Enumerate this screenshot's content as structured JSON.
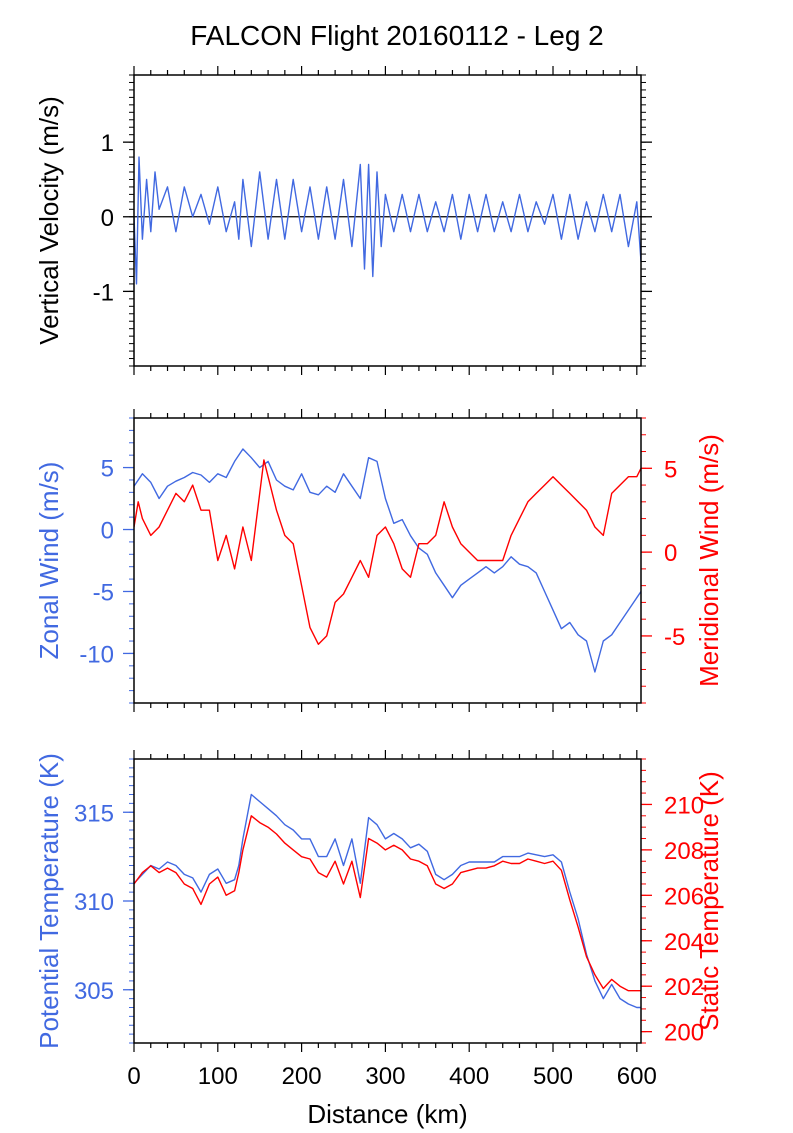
{
  "title": "FALCON Flight 20160112 - Leg 2",
  "colors": {
    "blue": "#4169E1",
    "red": "#FF0000",
    "frame": "#000000"
  },
  "chart_data": [
    {
      "type": "line",
      "ylabel": "Vertical Velocity (m/s)",
      "xlim": [
        0,
        605
      ],
      "ylim": [
        -2,
        1.9
      ],
      "yticks": [
        {
          "v": 1,
          "label": "1"
        },
        {
          "v": 0,
          "label": "0"
        },
        {
          "v": -1,
          "label": "-1"
        }
      ],
      "reference_line_y": 0,
      "series": [
        {
          "color": "#4169E1",
          "x": [
            0,
            3,
            6,
            10,
            15,
            20,
            25,
            30,
            40,
            50,
            60,
            70,
            80,
            90,
            100,
            110,
            120,
            125,
            130,
            140,
            150,
            160,
            170,
            180,
            190,
            200,
            210,
            220,
            230,
            240,
            250,
            260,
            270,
            275,
            280,
            285,
            290,
            295,
            300,
            310,
            320,
            330,
            340,
            350,
            360,
            370,
            380,
            390,
            400,
            410,
            420,
            430,
            440,
            450,
            460,
            470,
            480,
            490,
            500,
            510,
            520,
            530,
            540,
            550,
            560,
            570,
            580,
            590,
            600,
            605
          ],
          "y": [
            0.0,
            -0.9,
            0.8,
            -0.3,
            0.5,
            -0.2,
            0.6,
            0.1,
            0.4,
            -0.2,
            0.4,
            0.0,
            0.3,
            -0.1,
            0.4,
            -0.2,
            0.2,
            -0.3,
            0.5,
            -0.4,
            0.6,
            -0.3,
            0.5,
            -0.3,
            0.5,
            -0.2,
            0.4,
            -0.3,
            0.4,
            -0.3,
            0.5,
            -0.4,
            0.7,
            -0.7,
            0.7,
            -0.8,
            0.6,
            -0.4,
            0.3,
            -0.2,
            0.3,
            -0.2,
            0.3,
            -0.2,
            0.2,
            -0.2,
            0.3,
            -0.3,
            0.3,
            -0.2,
            0.3,
            -0.2,
            0.2,
            -0.2,
            0.3,
            -0.2,
            0.2,
            -0.1,
            0.3,
            -0.3,
            0.3,
            -0.3,
            0.2,
            -0.2,
            0.3,
            -0.2,
            0.3,
            -0.4,
            0.2,
            -0.6
          ]
        }
      ]
    },
    {
      "type": "line",
      "ylabel": "Zonal Wind (m/s)",
      "ylabel_right": "Meridional Wind (m/s)",
      "xlim": [
        0,
        605
      ],
      "ylim": [
        -14,
        9
      ],
      "ylim_right": [
        -9,
        8
      ],
      "yticks": [
        {
          "v": 5,
          "label": "5"
        },
        {
          "v": 0,
          "label": "0"
        },
        {
          "v": -5,
          "label": "-5"
        },
        {
          "v": -10,
          "label": "-10"
        }
      ],
      "yticks_right": [
        {
          "v": 5,
          "label": "5"
        },
        {
          "v": 0,
          "label": "0"
        },
        {
          "v": -5,
          "label": "-5"
        }
      ],
      "series": [
        {
          "name": "Zonal Wind",
          "axis": "left",
          "color": "#4169E1",
          "x": [
            0,
            10,
            20,
            30,
            40,
            50,
            60,
            70,
            80,
            90,
            100,
            110,
            120,
            130,
            140,
            150,
            160,
            170,
            180,
            190,
            200,
            210,
            220,
            230,
            240,
            250,
            260,
            270,
            280,
            290,
            300,
            310,
            320,
            330,
            340,
            350,
            360,
            370,
            380,
            390,
            400,
            410,
            420,
            430,
            440,
            450,
            460,
            470,
            480,
            490,
            500,
            510,
            520,
            530,
            540,
            550,
            560,
            570,
            580,
            590,
            600,
            605
          ],
          "y": [
            3.5,
            4.5,
            3.8,
            2.5,
            3.5,
            3.9,
            4.2,
            4.6,
            4.4,
            3.8,
            4.5,
            4.2,
            5.5,
            6.5,
            5.8,
            5.0,
            5.5,
            4.0,
            3.5,
            3.2,
            4.5,
            3.0,
            2.8,
            3.5,
            3.0,
            4.5,
            3.5,
            2.5,
            5.8,
            5.5,
            2.5,
            0.5,
            0.8,
            -0.5,
            -1.5,
            -2.0,
            -3.5,
            -4.5,
            -5.5,
            -4.5,
            -4.0,
            -3.5,
            -3.0,
            -3.5,
            -3.0,
            -2.2,
            -2.8,
            -3.0,
            -3.5,
            -5.0,
            -6.5,
            -8.0,
            -7.5,
            -8.5,
            -9.0,
            -11.5,
            -9.0,
            -8.5,
            -7.5,
            -6.5,
            -5.5,
            -5.0
          ]
        },
        {
          "name": "Meridional Wind",
          "axis": "right",
          "color": "#FF0000",
          "x": [
            0,
            5,
            10,
            20,
            30,
            40,
            50,
            60,
            70,
            80,
            90,
            100,
            110,
            120,
            130,
            140,
            150,
            155,
            160,
            170,
            180,
            190,
            200,
            210,
            220,
            230,
            240,
            250,
            260,
            270,
            280,
            290,
            300,
            310,
            320,
            330,
            340,
            350,
            360,
            370,
            380,
            390,
            400,
            410,
            420,
            430,
            440,
            450,
            460,
            470,
            480,
            490,
            500,
            510,
            520,
            530,
            540,
            550,
            560,
            570,
            580,
            590,
            600,
            605
          ],
          "y": [
            1.5,
            3.0,
            2.0,
            1.0,
            1.5,
            2.5,
            3.5,
            3.0,
            4.0,
            2.5,
            2.5,
            -0.5,
            1.0,
            -1.0,
            1.5,
            -0.5,
            3.5,
            5.5,
            4.5,
            2.5,
            1.0,
            0.5,
            -2.0,
            -4.5,
            -5.5,
            -5.0,
            -3.0,
            -2.5,
            -1.5,
            -0.5,
            -1.5,
            1.0,
            1.5,
            0.5,
            -1.0,
            -1.5,
            0.5,
            0.5,
            1.0,
            3.0,
            1.5,
            0.5,
            0.0,
            -0.5,
            -0.5,
            -0.5,
            -0.5,
            1.0,
            2.0,
            3.0,
            3.5,
            4.0,
            4.5,
            4.0,
            3.5,
            3.0,
            2.5,
            1.5,
            1.0,
            3.5,
            4.0,
            4.5,
            4.5,
            5.0
          ]
        }
      ]
    },
    {
      "type": "line",
      "xlabel": "Distance (km)",
      "ylabel": "Potential Temperature (K)",
      "ylabel_right": "Static Temperature (K)",
      "xlim": [
        0,
        605
      ],
      "ylim": [
        302,
        318
      ],
      "ylim_right": [
        199.5,
        212
      ],
      "xticks": [
        {
          "v": 0,
          "label": "0"
        },
        {
          "v": 100,
          "label": "100"
        },
        {
          "v": 200,
          "label": "200"
        },
        {
          "v": 300,
          "label": "300"
        },
        {
          "v": 400,
          "label": "400"
        },
        {
          "v": 500,
          "label": "500"
        },
        {
          "v": 600,
          "label": "600"
        }
      ],
      "yticks": [
        {
          "v": 315,
          "label": "315"
        },
        {
          "v": 310,
          "label": "310"
        },
        {
          "v": 305,
          "label": "305"
        }
      ],
      "yticks_right": [
        {
          "v": 210,
          "label": "210"
        },
        {
          "v": 208,
          "label": "208"
        },
        {
          "v": 206,
          "label": "206"
        },
        {
          "v": 204,
          "label": "204"
        },
        {
          "v": 202,
          "label": "202"
        },
        {
          "v": 200,
          "label": "200"
        }
      ],
      "series": [
        {
          "name": "Potential Temperature",
          "axis": "left",
          "color": "#4169E1",
          "x": [
            0,
            10,
            20,
            30,
            40,
            50,
            60,
            70,
            80,
            90,
            100,
            110,
            120,
            125,
            130,
            140,
            150,
            160,
            170,
            180,
            190,
            200,
            210,
            220,
            230,
            240,
            250,
            260,
            270,
            280,
            290,
            300,
            310,
            320,
            330,
            340,
            350,
            360,
            370,
            380,
            390,
            400,
            410,
            420,
            430,
            440,
            450,
            460,
            470,
            480,
            490,
            500,
            510,
            520,
            530,
            540,
            550,
            560,
            570,
            580,
            590,
            600,
            605
          ],
          "y": [
            311,
            311.5,
            312,
            311.8,
            312.2,
            312.0,
            311.5,
            311.3,
            310.5,
            311.5,
            311.8,
            311.0,
            311.2,
            312.0,
            313.5,
            316.0,
            315.6,
            315.2,
            314.8,
            314.3,
            314.0,
            313.5,
            313.5,
            312.5,
            312.5,
            313.5,
            312.0,
            313.5,
            311.0,
            314.7,
            314.3,
            313.5,
            313.8,
            313.5,
            313.0,
            313.2,
            312.8,
            311.5,
            311.2,
            311.5,
            312.0,
            312.2,
            312.2,
            312.2,
            312.2,
            312.5,
            312.5,
            312.5,
            312.7,
            312.6,
            312.5,
            312.6,
            312.2,
            310.5,
            309.0,
            307.0,
            305.5,
            304.5,
            305.3,
            304.5,
            304.2,
            304.0,
            304.0
          ]
        },
        {
          "name": "Static Temperature",
          "axis": "right",
          "color": "#FF0000",
          "x": [
            0,
            10,
            20,
            30,
            40,
            50,
            60,
            70,
            80,
            90,
            100,
            110,
            120,
            125,
            130,
            140,
            150,
            160,
            170,
            180,
            190,
            200,
            210,
            220,
            230,
            240,
            250,
            260,
            270,
            280,
            290,
            300,
            310,
            320,
            330,
            340,
            350,
            360,
            370,
            380,
            390,
            400,
            410,
            420,
            430,
            440,
            450,
            460,
            470,
            480,
            490,
            500,
            510,
            520,
            530,
            540,
            550,
            560,
            570,
            580,
            590,
            600,
            605
          ],
          "y": [
            206.5,
            207.0,
            207.3,
            207.0,
            207.2,
            207.0,
            206.5,
            206.3,
            205.6,
            206.5,
            206.8,
            206.0,
            206.2,
            207.0,
            208.0,
            209.5,
            209.2,
            209.0,
            208.7,
            208.3,
            208.0,
            207.7,
            207.6,
            207.0,
            206.8,
            207.5,
            206.5,
            207.5,
            205.9,
            208.5,
            208.3,
            208.0,
            208.2,
            208.0,
            207.6,
            207.5,
            207.3,
            206.5,
            206.3,
            206.5,
            207.0,
            207.1,
            207.2,
            207.2,
            207.3,
            207.5,
            207.4,
            207.4,
            207.6,
            207.5,
            207.4,
            207.5,
            207.1,
            205.8,
            204.6,
            203.3,
            202.5,
            201.9,
            202.3,
            202.0,
            201.8,
            201.8,
            201.8
          ]
        }
      ]
    }
  ]
}
